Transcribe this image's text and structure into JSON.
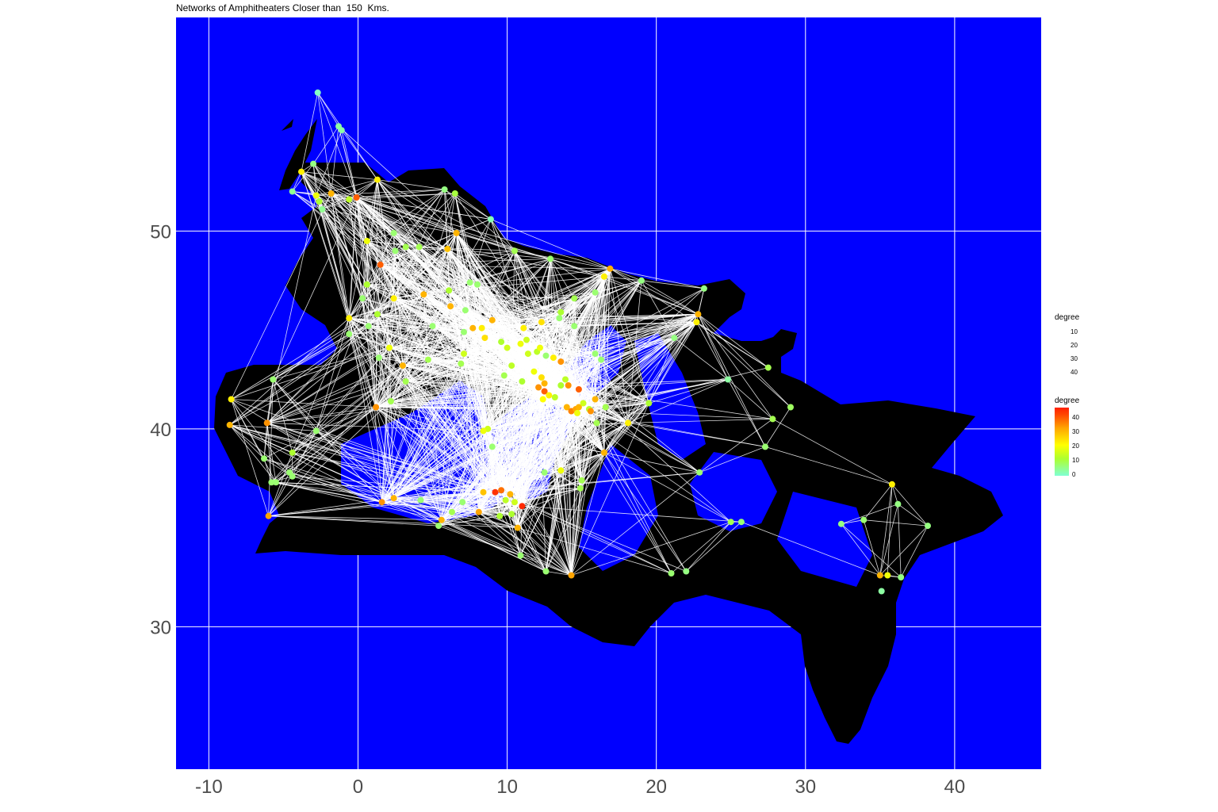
{
  "title": "Networks of Amphitheaters Closer than  150  Kms.",
  "chart_data": {
    "type": "scatter",
    "x_ticks": [
      "-10",
      "0",
      "10",
      "20",
      "30",
      "40"
    ],
    "y_ticks": [
      "30",
      "40",
      "50"
    ],
    "xlim": [
      -12.2,
      45.8
    ],
    "ylim": [
      22.8,
      60.8
    ],
    "grid": true,
    "legend_placement": "right",
    "size_legend": {
      "title": "degree",
      "labels": [
        "10",
        "20",
        "30",
        "40"
      ]
    },
    "color_legend": {
      "title": "degree",
      "labels": [
        "40",
        "30",
        "20",
        "10",
        "0"
      ],
      "range": [
        0,
        47
      ]
    },
    "colors": {
      "sea": "#0000ff",
      "land": "#000000",
      "edges": "#ffffff",
      "low": "#7fffd4",
      "mid_low": "#adff2f",
      "mid": "#ffff00",
      "mid_high": "#ffa500",
      "high": "#ff2000"
    },
    "points": [
      {
        "x": -2.7,
        "y": 57.0,
        "d": 1
      },
      {
        "x": -1.3,
        "y": 55.3,
        "d": 3
      },
      {
        "x": -1.1,
        "y": 55.1,
        "d": 3
      },
      {
        "x": -3.0,
        "y": 53.4,
        "d": 5
      },
      {
        "x": -3.8,
        "y": 53.0,
        "d": 22
      },
      {
        "x": 1.3,
        "y": 52.6,
        "d": 22
      },
      {
        "x": -4.4,
        "y": 52.0,
        "d": 4
      },
      {
        "x": -2.8,
        "y": 51.8,
        "d": 18
      },
      {
        "x": -1.8,
        "y": 51.9,
        "d": 30
      },
      {
        "x": -0.1,
        "y": 51.7,
        "d": 40
      },
      {
        "x": -2.6,
        "y": 51.5,
        "d": 10
      },
      {
        "x": -2.4,
        "y": 51.1,
        "d": 4
      },
      {
        "x": -0.6,
        "y": 51.6,
        "d": 12
      },
      {
        "x": 5.8,
        "y": 52.1,
        "d": 5
      },
      {
        "x": 6.5,
        "y": 51.9,
        "d": 9
      },
      {
        "x": 8.9,
        "y": 50.6,
        "d": 2
      },
      {
        "x": 6.6,
        "y": 49.9,
        "d": 30
      },
      {
        "x": 6.0,
        "y": 49.1,
        "d": 28
      },
      {
        "x": 10.5,
        "y": 49.0,
        "d": 8
      },
      {
        "x": 12.9,
        "y": 48.6,
        "d": 6
      },
      {
        "x": 16.9,
        "y": 48.1,
        "d": 31
      },
      {
        "x": 16.5,
        "y": 47.7,
        "d": 22
      },
      {
        "x": 19.0,
        "y": 47.5,
        "d": 5
      },
      {
        "x": 23.2,
        "y": 47.1,
        "d": 5
      },
      {
        "x": 22.8,
        "y": 45.8,
        "d": 30
      },
      {
        "x": 22.7,
        "y": 45.4,
        "d": 22
      },
      {
        "x": 21.2,
        "y": 44.6,
        "d": 5
      },
      {
        "x": 24.8,
        "y": 42.5,
        "d": 3
      },
      {
        "x": 27.5,
        "y": 43.1,
        "d": 8
      },
      {
        "x": 29.0,
        "y": 41.1,
        "d": 7
      },
      {
        "x": 27.8,
        "y": 40.5,
        "d": 8
      },
      {
        "x": 27.3,
        "y": 39.1,
        "d": 6
      },
      {
        "x": 35.8,
        "y": 37.2,
        "d": 22
      },
      {
        "x": 36.2,
        "y": 36.2,
        "d": 5
      },
      {
        "x": 38.2,
        "y": 35.1,
        "d": 5
      },
      {
        "x": 35.0,
        "y": 32.6,
        "d": 30
      },
      {
        "x": 35.5,
        "y": 32.6,
        "d": 18
      },
      {
        "x": 36.4,
        "y": 32.5,
        "d": 5
      },
      {
        "x": 35.1,
        "y": 31.8,
        "d": 3
      },
      {
        "x": 32.4,
        "y": 35.2,
        "d": 5
      },
      {
        "x": 33.9,
        "y": 35.4,
        "d": 6
      },
      {
        "x": 25.0,
        "y": 35.3,
        "d": 8
      },
      {
        "x": 25.7,
        "y": 35.3,
        "d": 6
      },
      {
        "x": 22.0,
        "y": 32.8,
        "d": 5
      },
      {
        "x": 21.0,
        "y": 32.7,
        "d": 6
      },
      {
        "x": 14.3,
        "y": 32.6,
        "d": 32
      },
      {
        "x": 12.6,
        "y": 32.8,
        "d": 6
      },
      {
        "x": 10.9,
        "y": 33.6,
        "d": 6
      },
      {
        "x": 10.7,
        "y": 35.0,
        "d": 30
      },
      {
        "x": 11.0,
        "y": 36.1,
        "d": 46
      },
      {
        "x": 10.2,
        "y": 36.7,
        "d": 30
      },
      {
        "x": 9.2,
        "y": 36.8,
        "d": 45
      },
      {
        "x": 9.6,
        "y": 36.9,
        "d": 38
      },
      {
        "x": 8.4,
        "y": 36.8,
        "d": 28
      },
      {
        "x": 9.9,
        "y": 36.4,
        "d": 12
      },
      {
        "x": 10.5,
        "y": 36.3,
        "d": 14
      },
      {
        "x": 8.1,
        "y": 35.8,
        "d": 32
      },
      {
        "x": 9.5,
        "y": 35.6,
        "d": 10
      },
      {
        "x": 10.3,
        "y": 35.7,
        "d": 10
      },
      {
        "x": 7.0,
        "y": 36.3,
        "d": 6
      },
      {
        "x": 5.6,
        "y": 35.4,
        "d": 30
      },
      {
        "x": 5.4,
        "y": 35.1,
        "d": 6
      },
      {
        "x": 6.3,
        "y": 35.8,
        "d": 8
      },
      {
        "x": 2.4,
        "y": 36.5,
        "d": 30
      },
      {
        "x": 1.6,
        "y": 36.3,
        "d": 34
      },
      {
        "x": 4.2,
        "y": 36.4,
        "d": 6
      },
      {
        "x": -6.0,
        "y": 35.6,
        "d": 32
      },
      {
        "x": -5.5,
        "y": 37.3,
        "d": 6
      },
      {
        "x": -5.8,
        "y": 37.3,
        "d": 6
      },
      {
        "x": -4.6,
        "y": 37.8,
        "d": 6
      },
      {
        "x": -4.4,
        "y": 37.6,
        "d": 6
      },
      {
        "x": -6.3,
        "y": 38.5,
        "d": 6
      },
      {
        "x": -8.6,
        "y": 40.2,
        "d": 30
      },
      {
        "x": -6.1,
        "y": 40.3,
        "d": 34
      },
      {
        "x": -8.5,
        "y": 41.5,
        "d": 22
      },
      {
        "x": -5.7,
        "y": 42.5,
        "d": 6
      },
      {
        "x": -4.4,
        "y": 38.8,
        "d": 10
      },
      {
        "x": -2.8,
        "y": 39.9,
        "d": 6
      },
      {
        "x": 1.2,
        "y": 41.1,
        "d": 34
      },
      {
        "x": 2.2,
        "y": 41.4,
        "d": 8
      },
      {
        "x": 3.2,
        "y": 42.4,
        "d": 8
      },
      {
        "x": 3.0,
        "y": 43.2,
        "d": 30
      },
      {
        "x": 1.4,
        "y": 43.6,
        "d": 6
      },
      {
        "x": 2.1,
        "y": 44.1,
        "d": 18
      },
      {
        "x": -0.6,
        "y": 44.8,
        "d": 6
      },
      {
        "x": 0.7,
        "y": 45.2,
        "d": 6
      },
      {
        "x": -0.6,
        "y": 45.6,
        "d": 22
      },
      {
        "x": 1.3,
        "y": 45.8,
        "d": 10
      },
      {
        "x": 0.3,
        "y": 46.6,
        "d": 6
      },
      {
        "x": 2.4,
        "y": 46.6,
        "d": 22
      },
      {
        "x": 4.4,
        "y": 46.8,
        "d": 30
      },
      {
        "x": 0.6,
        "y": 47.3,
        "d": 10
      },
      {
        "x": 1.5,
        "y": 48.3,
        "d": 40
      },
      {
        "x": 0.6,
        "y": 49.5,
        "d": 18
      },
      {
        "x": 2.5,
        "y": 49.0,
        "d": 6
      },
      {
        "x": 2.4,
        "y": 49.9,
        "d": 6
      },
      {
        "x": 3.2,
        "y": 49.2,
        "d": 8
      },
      {
        "x": 4.1,
        "y": 49.2,
        "d": 8
      },
      {
        "x": 6.1,
        "y": 47.0,
        "d": 10
      },
      {
        "x": 6.2,
        "y": 46.2,
        "d": 30
      },
      {
        "x": 7.2,
        "y": 46.0,
        "d": 6
      },
      {
        "x": 7.5,
        "y": 47.4,
        "d": 6
      },
      {
        "x": 8.0,
        "y": 47.3,
        "d": 6
      },
      {
        "x": 9.0,
        "y": 45.5,
        "d": 30
      },
      {
        "x": 8.3,
        "y": 45.1,
        "d": 22
      },
      {
        "x": 7.1,
        "y": 44.9,
        "d": 6
      },
      {
        "x": 7.1,
        "y": 43.8,
        "d": 14
      },
      {
        "x": 6.9,
        "y": 43.3,
        "d": 8
      },
      {
        "x": 4.7,
        "y": 43.5,
        "d": 8
      },
      {
        "x": 5.0,
        "y": 45.2,
        "d": 6
      },
      {
        "x": 7.7,
        "y": 45.1,
        "d": 30
      },
      {
        "x": 8.5,
        "y": 44.6,
        "d": 24
      },
      {
        "x": 9.6,
        "y": 44.4,
        "d": 10
      },
      {
        "x": 10.0,
        "y": 44.1,
        "d": 14
      },
      {
        "x": 10.9,
        "y": 44.3,
        "d": 18
      },
      {
        "x": 11.3,
        "y": 44.5,
        "d": 14
      },
      {
        "x": 11.4,
        "y": 43.8,
        "d": 14
      },
      {
        "x": 12.0,
        "y": 43.9,
        "d": 12
      },
      {
        "x": 12.6,
        "y": 43.7,
        "d": 6
      },
      {
        "x": 13.1,
        "y": 43.6,
        "d": 22
      },
      {
        "x": 13.6,
        "y": 43.4,
        "d": 34
      },
      {
        "x": 12.2,
        "y": 44.1,
        "d": 18
      },
      {
        "x": 11.1,
        "y": 45.1,
        "d": 22
      },
      {
        "x": 12.3,
        "y": 45.4,
        "d": 24
      },
      {
        "x": 13.5,
        "y": 45.6,
        "d": 6
      },
      {
        "x": 14.5,
        "y": 45.2,
        "d": 6
      },
      {
        "x": 11.8,
        "y": 42.9,
        "d": 18
      },
      {
        "x": 12.3,
        "y": 42.6,
        "d": 24
      },
      {
        "x": 12.5,
        "y": 42.3,
        "d": 30
      },
      {
        "x": 12.1,
        "y": 42.1,
        "d": 34
      },
      {
        "x": 12.5,
        "y": 41.9,
        "d": 40
      },
      {
        "x": 12.8,
        "y": 41.7,
        "d": 22
      },
      {
        "x": 12.4,
        "y": 41.5,
        "d": 20
      },
      {
        "x": 13.2,
        "y": 41.6,
        "d": 12
      },
      {
        "x": 13.6,
        "y": 42.2,
        "d": 10
      },
      {
        "x": 13.9,
        "y": 42.5,
        "d": 12
      },
      {
        "x": 14.0,
        "y": 41.1,
        "d": 30
      },
      {
        "x": 14.3,
        "y": 40.9,
        "d": 36
      },
      {
        "x": 14.6,
        "y": 41.0,
        "d": 32
      },
      {
        "x": 14.8,
        "y": 41.1,
        "d": 30
      },
      {
        "x": 15.1,
        "y": 41.3,
        "d": 14
      },
      {
        "x": 14.7,
        "y": 40.8,
        "d": 18
      },
      {
        "x": 15.5,
        "y": 41.0,
        "d": 12
      },
      {
        "x": 15.9,
        "y": 41.5,
        "d": 30
      },
      {
        "x": 15.6,
        "y": 40.9,
        "d": 34
      },
      {
        "x": 14.8,
        "y": 42.0,
        "d": 40
      },
      {
        "x": 14.1,
        "y": 42.2,
        "d": 34
      },
      {
        "x": 16.6,
        "y": 41.1,
        "d": 8
      },
      {
        "x": 16.0,
        "y": 40.3,
        "d": 8
      },
      {
        "x": 18.1,
        "y": 40.3,
        "d": 22
      },
      {
        "x": 19.5,
        "y": 41.3,
        "d": 10
      },
      {
        "x": 16.5,
        "y": 38.8,
        "d": 30
      },
      {
        "x": 15.0,
        "y": 37.4,
        "d": 8
      },
      {
        "x": 14.9,
        "y": 37.0,
        "d": 8
      },
      {
        "x": 13.6,
        "y": 37.9,
        "d": 18
      },
      {
        "x": 12.5,
        "y": 37.8,
        "d": 6
      },
      {
        "x": 9.0,
        "y": 39.1,
        "d": 6
      },
      {
        "x": 8.7,
        "y": 40.0,
        "d": 14
      },
      {
        "x": 8.4,
        "y": 39.9,
        "d": 18
      },
      {
        "x": 16.3,
        "y": 43.5,
        "d": 6
      },
      {
        "x": 15.9,
        "y": 43.8,
        "d": 6
      },
      {
        "x": 15.9,
        "y": 46.9,
        "d": 6
      },
      {
        "x": 14.5,
        "y": 46.6,
        "d": 8
      },
      {
        "x": 22.9,
        "y": 37.8,
        "d": 6
      },
      {
        "x": 13.6,
        "y": 45.9,
        "d": 10
      },
      {
        "x": 9.8,
        "y": 42.7,
        "d": 8
      },
      {
        "x": 10.3,
        "y": 43.2,
        "d": 12
      },
      {
        "x": 11.0,
        "y": 42.4,
        "d": 10
      }
    ]
  }
}
